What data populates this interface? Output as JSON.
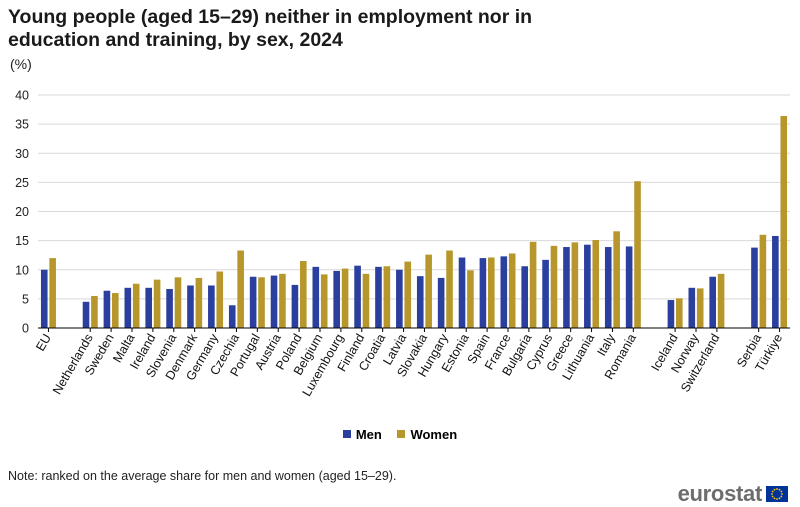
{
  "title": "Young people (aged 15–29) neither in employment nor in education and training, by sex, 2024",
  "unit": "(%)",
  "note": "Note: ranked on the average share for men and women (aged 15–29).",
  "brand": {
    "name": "eurostat"
  },
  "colors": {
    "men": "#2a3f9e",
    "women": "#b7972c",
    "grid": "#d9d9d9",
    "axis": "#000000",
    "flag_blue": "#003399",
    "flag_star": "#ffcc00"
  },
  "icons": {
    "eu_flag": "eu-flag-icon"
  },
  "chart_data": {
    "type": "bar",
    "ylim": [
      0,
      40
    ],
    "yticks": [
      0,
      5,
      10,
      15,
      20,
      25,
      30,
      35,
      40
    ],
    "grid": true,
    "legend_position": "bottom-center",
    "categories": [
      "EU",
      "Netherlands",
      "Sweden",
      "Malta",
      "Ireland",
      "Slovenia",
      "Denmark",
      "Germany",
      "Czechia",
      "Portugal",
      "Austria",
      "Poland",
      "Belgium",
      "Luxembourg",
      "Finland",
      "Croatia",
      "Latvia",
      "Slovakia",
      "Hungary",
      "Estonia",
      "Spain",
      "France",
      "Bulgaria",
      "Cyprus",
      "Greece",
      "Lithuania",
      "Italy",
      "Romania",
      "Iceland",
      "Norway",
      "Switzerland",
      "Serbia",
      "Türkiye"
    ],
    "category_groups": [
      [
        0,
        0
      ],
      [
        1,
        27
      ],
      [
        28,
        30
      ],
      [
        31,
        32
      ]
    ],
    "series": [
      {
        "name": "Men",
        "values": [
          10.0,
          4.5,
          6.4,
          6.9,
          6.9,
          6.7,
          7.3,
          7.3,
          3.9,
          8.8,
          9.0,
          7.4,
          10.5,
          9.8,
          10.7,
          10.5,
          10.0,
          8.9,
          8.6,
          12.1,
          12.0,
          12.3,
          10.6,
          11.7,
          13.9,
          14.3,
          13.9,
          14.0,
          4.8,
          6.9,
          8.8,
          13.8,
          15.8
        ]
      },
      {
        "name": "Women",
        "values": [
          12.0,
          5.5,
          6.0,
          7.6,
          8.3,
          8.7,
          8.6,
          9.7,
          13.3,
          8.7,
          9.3,
          11.5,
          9.2,
          10.2,
          9.3,
          10.6,
          11.4,
          12.6,
          13.3,
          9.9,
          12.1,
          12.8,
          14.8,
          14.1,
          14.7,
          15.1,
          16.6,
          25.2,
          5.1,
          6.8,
          9.3,
          16.0,
          36.4
        ]
      }
    ]
  }
}
